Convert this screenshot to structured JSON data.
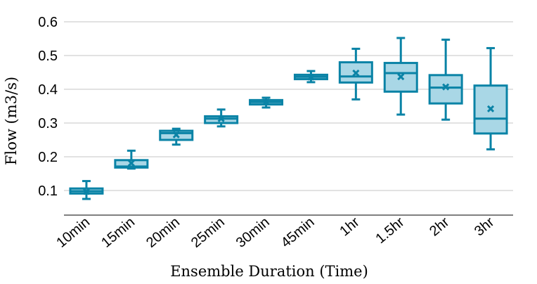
{
  "chart_data": {
    "type": "box",
    "xlabel": "Ensemble Duration (Time)",
    "ylabel": "Flow (m3/s)",
    "ylim": [
      0.03,
      0.62
    ],
    "yticks": [
      "0.1",
      "0.2",
      "0.3",
      "0.4",
      "0.5",
      "0.6"
    ],
    "grid": "horizontal",
    "colors": {
      "box_fill": "#a9d7e6",
      "box_stroke": "#0a83a6",
      "grid": "#c4c4c4",
      "axis": "#000000"
    },
    "categories": [
      "10min",
      "15min",
      "20min",
      "25min",
      "30min",
      "45min",
      "1hr",
      "1.5hr",
      "2hr",
      "3hr"
    ],
    "boxes": [
      {
        "min": 0.075,
        "q1": 0.091,
        "median": 0.098,
        "q3": 0.106,
        "max": 0.128,
        "mean": 0.097
      },
      {
        "min": 0.165,
        "q1": 0.168,
        "median": 0.171,
        "q3": 0.19,
        "max": 0.218,
        "mean": 0.181
      },
      {
        "min": 0.236,
        "q1": 0.25,
        "median": 0.27,
        "q3": 0.277,
        "max": 0.283,
        "mean": 0.265
      },
      {
        "min": 0.29,
        "q1": 0.3,
        "median": 0.313,
        "q3": 0.32,
        "max": 0.34,
        "mean": 0.313
      },
      {
        "min": 0.346,
        "q1": 0.355,
        "median": 0.362,
        "q3": 0.368,
        "max": 0.375,
        "mean": 0.362
      },
      {
        "min": 0.421,
        "q1": 0.43,
        "median": 0.437,
        "q3": 0.443,
        "max": 0.454,
        "mean": 0.436
      },
      {
        "min": 0.37,
        "q1": 0.42,
        "median": 0.438,
        "q3": 0.48,
        "max": 0.52,
        "mean": 0.448
      },
      {
        "min": 0.325,
        "q1": 0.393,
        "median": 0.448,
        "q3": 0.478,
        "max": 0.552,
        "mean": 0.437
      },
      {
        "min": 0.31,
        "q1": 0.358,
        "median": 0.405,
        "q3": 0.442,
        "max": 0.547,
        "mean": 0.407
      },
      {
        "min": 0.222,
        "q1": 0.269,
        "median": 0.313,
        "q3": 0.411,
        "max": 0.522,
        "mean": 0.342
      }
    ]
  }
}
